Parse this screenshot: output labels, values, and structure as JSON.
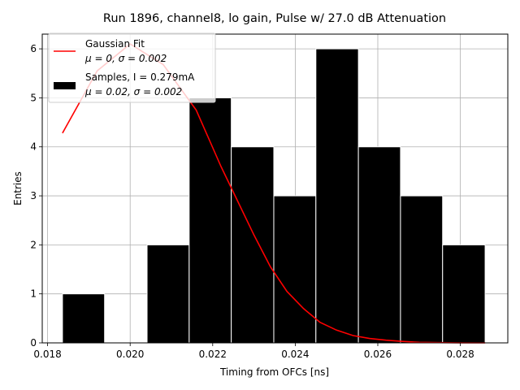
{
  "chart_data": {
    "type": "bar",
    "title": "Run 1896, channel8, lo gain, Pulse w/ 27.0 dB Attenuation",
    "xlabel": "Timing from OFCs [ns]",
    "ylabel": "Entries",
    "xlim": [
      0.01787,
      0.02915
    ],
    "ylim": [
      0,
      6.3
    ],
    "grid": true,
    "legend_position": "top-left",
    "xticks": [
      {
        "value": 0.018,
        "label": "0.018"
      },
      {
        "value": 0.02,
        "label": "0.020"
      },
      {
        "value": 0.022,
        "label": "0.022"
      },
      {
        "value": 0.024,
        "label": "0.024"
      },
      {
        "value": 0.026,
        "label": "0.026"
      },
      {
        "value": 0.028,
        "label": "0.028"
      }
    ],
    "yticks": [
      {
        "value": 0,
        "label": "0"
      },
      {
        "value": 1,
        "label": "1"
      },
      {
        "value": 2,
        "label": "2"
      },
      {
        "value": 3,
        "label": "3"
      },
      {
        "value": 4,
        "label": "4"
      },
      {
        "value": 5,
        "label": "5"
      },
      {
        "value": 6,
        "label": "6"
      }
    ],
    "histogram": {
      "bin_edges": [
        0.01836,
        0.01938,
        0.02041,
        0.02143,
        0.02245,
        0.02348,
        0.0245,
        0.02553,
        0.02655,
        0.02757,
        0.0286
      ],
      "counts": [
        1,
        0,
        2,
        5,
        4,
        3,
        6,
        4,
        3,
        2
      ],
      "color": "#000000"
    },
    "fit_curve": {
      "color": "#ff0000",
      "points": [
        [
          0.01836,
          4.28
        ],
        [
          0.0192,
          5.55
        ],
        [
          0.02,
          6.1
        ],
        [
          0.0208,
          5.68
        ],
        [
          0.0216,
          4.75
        ],
        [
          0.0222,
          3.6
        ],
        [
          0.0226,
          2.9
        ],
        [
          0.023,
          2.2
        ],
        [
          0.0234,
          1.55
        ],
        [
          0.0238,
          1.05
        ],
        [
          0.0242,
          0.7
        ],
        [
          0.0246,
          0.42
        ],
        [
          0.025,
          0.26
        ],
        [
          0.0254,
          0.15
        ],
        [
          0.0258,
          0.09
        ],
        [
          0.0262,
          0.055
        ],
        [
          0.0266,
          0.03
        ],
        [
          0.027,
          0.012
        ],
        [
          0.0275,
          0.005
        ],
        [
          0.028,
          0.002
        ],
        [
          0.0286,
          0.0
        ]
      ]
    },
    "legend": [
      {
        "label": "Gaussian Fit",
        "sublabel": "μ = 0, σ = 0.002",
        "color": "#ff0000",
        "marker": "line"
      },
      {
        "label": "Samples, I = 0.279mA",
        "sublabel": "μ = 0.02, σ = 0.002",
        "color": "#000000",
        "marker": "patch"
      }
    ]
  }
}
